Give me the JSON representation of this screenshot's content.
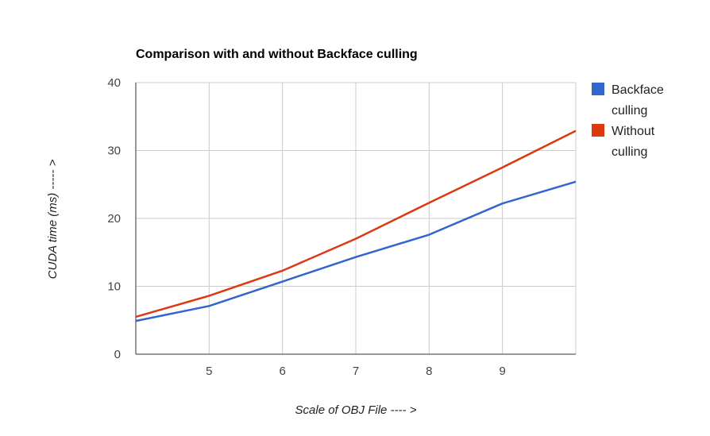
{
  "chart_data": {
    "type": "line",
    "title": "Comparison with and without Backface culling",
    "xlabel": "Scale of OBJ File ---- >",
    "ylabel": "CUDA time (ms) ----- >",
    "x": [
      4,
      5,
      6,
      7,
      8,
      9,
      10
    ],
    "xlim": [
      4,
      10
    ],
    "ylim": [
      0,
      40
    ],
    "xticks": [
      "5",
      "6",
      "7",
      "8",
      "9"
    ],
    "xtick_values": [
      5,
      6,
      7,
      8,
      9
    ],
    "yticks": [
      "0",
      "10",
      "20",
      "30",
      "40"
    ],
    "ytick_values": [
      0,
      10,
      20,
      30,
      40
    ],
    "grid": true,
    "legend_position": "right",
    "series": [
      {
        "name_lines": [
          "Backface",
          "culling"
        ],
        "color": "#3366cc",
        "values": [
          4.9,
          7.1,
          10.7,
          14.3,
          17.6,
          22.2,
          25.4
        ]
      },
      {
        "name_lines": [
          "Without",
          "culling"
        ],
        "color": "#dc3912",
        "values": [
          5.5,
          8.6,
          12.3,
          17.0,
          22.3,
          27.5,
          32.9
        ]
      }
    ]
  }
}
